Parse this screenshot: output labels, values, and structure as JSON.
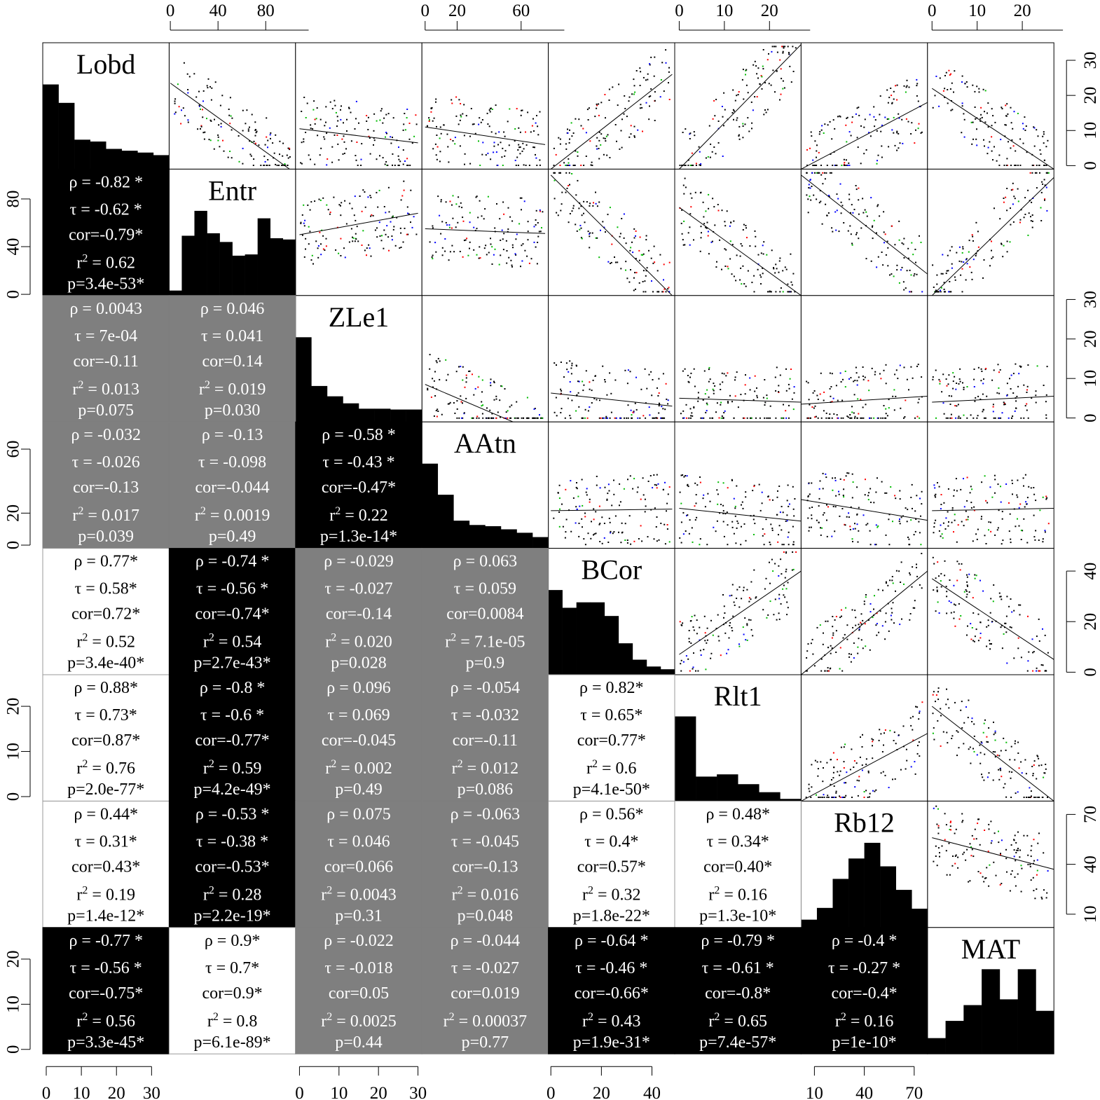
{
  "chart_data": {
    "type": "scatter-matrix",
    "variables": [
      "Lobd",
      "Entr",
      "ZLe1",
      "AAtn",
      "BCor",
      "Rlt1",
      "Rb12",
      "MAT"
    ],
    "colors": {
      "strong": "#000000",
      "positive_strong": "#ffffff",
      "weak": "#7f7f7f",
      "point_default": "#000000",
      "point_red": "#ff0000",
      "point_green": "#00bb00",
      "point_blue": "#0000ff"
    },
    "ranges": [
      [
        -1,
        35
      ],
      [
        -1,
        105
      ],
      [
        -1,
        31
      ],
      [
        -2,
        77
      ],
      [
        -1,
        49
      ],
      [
        -1,
        27
      ],
      [
        2,
        78
      ],
      [
        -1,
        27
      ]
    ],
    "ticks": {
      "top": [
        {
          "var": 1,
          "values": [
            0,
            40,
            80
          ],
          "labels": [
            "0",
            "40",
            "80"
          ]
        },
        {
          "var": 3,
          "values": [
            0,
            20,
            60
          ],
          "labels": [
            "0",
            "20",
            "60"
          ]
        },
        {
          "var": 5,
          "values": [
            0,
            10,
            20
          ],
          "labels": [
            "0",
            "10",
            "20"
          ]
        },
        {
          "var": 7,
          "values": [
            0,
            10,
            20
          ],
          "labels": [
            "0",
            "10",
            "20"
          ]
        }
      ],
      "bottom": [
        {
          "var": 0,
          "values": [
            0,
            10,
            20,
            30
          ],
          "labels": [
            "0",
            "10",
            "20",
            "30"
          ]
        },
        {
          "var": 2,
          "values": [
            0,
            10,
            20,
            30
          ],
          "labels": [
            "0",
            "10",
            "20",
            "30"
          ]
        },
        {
          "var": 4,
          "values": [
            0,
            20,
            40
          ],
          "labels": [
            "0",
            "20",
            "40"
          ]
        },
        {
          "var": 6,
          "values": [
            10,
            40,
            70
          ],
          "labels": [
            "10",
            "40",
            "70"
          ]
        }
      ],
      "left": [
        {
          "var": 1,
          "values": [
            0,
            40,
            80
          ],
          "labels": [
            "0",
            "40",
            "80"
          ]
        },
        {
          "var": 3,
          "values": [
            0,
            20,
            60
          ],
          "labels": [
            "0",
            "20",
            "60"
          ]
        },
        {
          "var": 5,
          "values": [
            0,
            10,
            20
          ],
          "labels": [
            "0",
            "10",
            "20"
          ]
        },
        {
          "var": 7,
          "values": [
            0,
            10,
            20
          ],
          "labels": [
            "0",
            "10",
            "20"
          ]
        }
      ],
      "right": [
        {
          "var": 0,
          "values": [
            0,
            10,
            20,
            30
          ],
          "labels": [
            "0",
            "10",
            "20",
            "30"
          ]
        },
        {
          "var": 2,
          "values": [
            0,
            10,
            20,
            30
          ],
          "labels": [
            "0",
            "10",
            "20",
            "30"
          ]
        },
        {
          "var": 4,
          "values": [
            0,
            20,
            40
          ],
          "labels": [
            "0",
            "20",
            "40"
          ]
        },
        {
          "var": 6,
          "values": [
            10,
            40,
            70
          ],
          "labels": [
            "10",
            "40",
            "70"
          ]
        }
      ]
    },
    "histograms": [
      [
        23,
        18,
        8,
        7.5,
        5.5,
        5,
        4.5,
        3.8
      ],
      [
        4,
        48,
        68,
        50,
        43,
        32,
        33,
        62,
        46,
        45
      ],
      [
        20.5,
        8.7,
        6.2,
        4.5,
        3.2,
        3.2,
        3,
        3
      ],
      [
        49,
        31,
        16,
        13.5,
        12.8,
        11,
        9,
        6.5
      ],
      [
        31,
        24.5,
        26.5,
        26.5,
        21.5,
        11.5,
        5.5,
        3,
        2
      ],
      [
        19,
        5.5,
        6,
        3.8,
        2,
        0.5
      ],
      [
        5,
        12.5,
        31,
        44,
        54,
        39,
        24,
        12
      ],
      [
        5.5,
        11.5,
        17,
        29.5,
        19,
        29.5,
        15
      ]
    ],
    "regression": [
      {
        "i": 0,
        "j": 1,
        "p1": [
          0,
          23.5
        ],
        "p2": [
          100,
          -1
        ]
      },
      {
        "i": 0,
        "j": 2,
        "p1": [
          0,
          10.5
        ],
        "p2": [
          30,
          6.5
        ]
      },
      {
        "i": 0,
        "j": 3,
        "p1": [
          0,
          11
        ],
        "p2": [
          75,
          6
        ]
      },
      {
        "i": 0,
        "j": 4,
        "p1": [
          0,
          -1
        ],
        "p2": [
          48,
          26
        ]
      },
      {
        "i": 0,
        "j": 5,
        "p1": [
          0,
          -1
        ],
        "p2": [
          27,
          34.5
        ]
      },
      {
        "i": 0,
        "j": 6,
        "p1": [
          2,
          -1
        ],
        "p2": [
          78,
          18
        ]
      },
      {
        "i": 0,
        "j": 7,
        "p1": [
          0,
          22
        ],
        "p2": [
          27,
          -1
        ]
      },
      {
        "i": 1,
        "j": 2,
        "p1": [
          0,
          50
        ],
        "p2": [
          30,
          68
        ]
      },
      {
        "i": 1,
        "j": 3,
        "p1": [
          0,
          55
        ],
        "p2": [
          75,
          51
        ]
      },
      {
        "i": 1,
        "j": 4,
        "p1": [
          0,
          100
        ],
        "p2": [
          48,
          -1
        ]
      },
      {
        "i": 1,
        "j": 5,
        "p1": [
          0,
          73
        ],
        "p2": [
          27,
          -1
        ]
      },
      {
        "i": 1,
        "j": 6,
        "p1": [
          2,
          100
        ],
        "p2": [
          78,
          17
        ]
      },
      {
        "i": 1,
        "j": 7,
        "p1": [
          0,
          -1
        ],
        "p2": [
          27,
          98
        ]
      },
      {
        "i": 2,
        "j": 3,
        "p1": [
          0,
          8.5
        ],
        "p2": [
          55,
          -1
        ]
      },
      {
        "i": 2,
        "j": 4,
        "p1": [
          0,
          6.3
        ],
        "p2": [
          48,
          3
        ]
      },
      {
        "i": 2,
        "j": 5,
        "p1": [
          0,
          5
        ],
        "p2": [
          27,
          4
        ]
      },
      {
        "i": 2,
        "j": 6,
        "p1": [
          2,
          3.5
        ],
        "p2": [
          78,
          5.5
        ]
      },
      {
        "i": 2,
        "j": 7,
        "p1": [
          0,
          4
        ],
        "p2": [
          27,
          5.5
        ]
      },
      {
        "i": 3,
        "j": 4,
        "p1": [
          0,
          21.5
        ],
        "p2": [
          48,
          22.5
        ]
      },
      {
        "i": 3,
        "j": 5,
        "p1": [
          0,
          23
        ],
        "p2": [
          27,
          15
        ]
      },
      {
        "i": 3,
        "j": 6,
        "p1": [
          2,
          28.5
        ],
        "p2": [
          78,
          15.5
        ]
      },
      {
        "i": 3,
        "j": 7,
        "p1": [
          0,
          21.5
        ],
        "p2": [
          27,
          23
        ]
      },
      {
        "i": 4,
        "j": 5,
        "p1": [
          0,
          7
        ],
        "p2": [
          27,
          40
        ]
      },
      {
        "i": 4,
        "j": 6,
        "p1": [
          2,
          -1
        ],
        "p2": [
          78,
          40
        ]
      },
      {
        "i": 4,
        "j": 7,
        "p1": [
          0,
          37
        ],
        "p2": [
          27,
          5
        ]
      },
      {
        "i": 5,
        "j": 6,
        "p1": [
          2,
          -1
        ],
        "p2": [
          78,
          14
        ]
      },
      {
        "i": 5,
        "j": 7,
        "p1": [
          0,
          20
        ],
        "p2": [
          27,
          -1
        ]
      },
      {
        "i": 6,
        "j": 7,
        "p1": [
          0,
          56
        ],
        "p2": [
          27,
          37
        ]
      }
    ],
    "correlations": [
      {
        "row": 1,
        "col": 0,
        "fill": "#000000",
        "lines": [
          "ρ = -0.82 *",
          "τ = -0.62 *",
          "cor=-0.79*",
          "r2 = 0.62",
          "p=3.4e-53*"
        ]
      },
      {
        "row": 2,
        "col": 0,
        "fill": "#7f7f7f",
        "lines": [
          "ρ = 0.0043",
          "τ = 7e-04",
          "cor=-0.11",
          "r2 = 0.013",
          "p=0.075"
        ]
      },
      {
        "row": 2,
        "col": 1,
        "fill": "#7f7f7f",
        "lines": [
          "ρ = 0.046",
          "τ = 0.041",
          "cor=0.14",
          "r2 = 0.019",
          "p=0.030"
        ]
      },
      {
        "row": 3,
        "col": 0,
        "fill": "#7f7f7f",
        "lines": [
          "ρ = -0.032",
          "τ = -0.026",
          "cor=-0.13",
          "r2 = 0.017",
          "p=0.039"
        ]
      },
      {
        "row": 3,
        "col": 1,
        "fill": "#7f7f7f",
        "lines": [
          "ρ = -0.13",
          "τ = -0.098",
          "cor=-0.044",
          "r2 = 0.0019",
          "p=0.49"
        ]
      },
      {
        "row": 3,
        "col": 2,
        "fill": "#000000",
        "lines": [
          "ρ = -0.58 *",
          "τ = -0.43 *",
          "cor=-0.47*",
          "r2 = 0.22",
          "p=1.3e-14*"
        ]
      },
      {
        "row": 4,
        "col": 0,
        "fill": "#ffffff",
        "lines": [
          "ρ = 0.77*",
          "τ = 0.58*",
          "cor=0.72*",
          "r2 = 0.52",
          "p=3.4e-40*"
        ]
      },
      {
        "row": 4,
        "col": 1,
        "fill": "#000000",
        "lines": [
          "ρ = -0.74 *",
          "τ = -0.56 *",
          "cor=-0.74*",
          "r2 = 0.54",
          "p=2.7e-43*"
        ]
      },
      {
        "row": 4,
        "col": 2,
        "fill": "#7f7f7f",
        "lines": [
          "ρ = -0.029",
          "τ = -0.027",
          "cor=-0.14",
          "r2 = 0.020",
          "p=0.028"
        ]
      },
      {
        "row": 4,
        "col": 3,
        "fill": "#7f7f7f",
        "lines": [
          "ρ = 0.063",
          "τ = 0.059",
          "cor=0.0084",
          "r2 = 7.1e-05",
          "p=0.9"
        ]
      },
      {
        "row": 5,
        "col": 0,
        "fill": "#ffffff",
        "lines": [
          "ρ = 0.88*",
          "τ = 0.73*",
          "cor=0.87*",
          "r2 = 0.76",
          "p=2.0e-77*"
        ]
      },
      {
        "row": 5,
        "col": 1,
        "fill": "#000000",
        "lines": [
          "ρ = -0.8 *",
          "τ = -0.6 *",
          "cor=-0.77*",
          "r2 = 0.59",
          "p=4.2e-49*"
        ]
      },
      {
        "row": 5,
        "col": 2,
        "fill": "#7f7f7f",
        "lines": [
          "ρ = 0.096",
          "τ = 0.069",
          "cor=-0.045",
          "r2 = 0.002",
          "p=0.49"
        ]
      },
      {
        "row": 5,
        "col": 3,
        "fill": "#7f7f7f",
        "lines": [
          "ρ = -0.054",
          "τ = -0.032",
          "cor=-0.11",
          "r2 = 0.012",
          "p=0.086"
        ]
      },
      {
        "row": 5,
        "col": 4,
        "fill": "#ffffff",
        "lines": [
          "ρ = 0.82*",
          "τ = 0.65*",
          "cor=0.77*",
          "r2 = 0.6",
          "p=4.1e-50*"
        ]
      },
      {
        "row": 6,
        "col": 0,
        "fill": "#ffffff",
        "lines": [
          "ρ = 0.44*",
          "τ = 0.31*",
          "cor=0.43*",
          "r2 = 0.19",
          "p=1.4e-12*"
        ]
      },
      {
        "row": 6,
        "col": 1,
        "fill": "#000000",
        "lines": [
          "ρ = -0.53 *",
          "τ = -0.38 *",
          "cor=-0.53*",
          "r2 = 0.28",
          "p=2.2e-19*"
        ]
      },
      {
        "row": 6,
        "col": 2,
        "fill": "#7f7f7f",
        "lines": [
          "ρ = 0.075",
          "τ = 0.046",
          "cor=0.066",
          "r2 = 0.0043",
          "p=0.31"
        ]
      },
      {
        "row": 6,
        "col": 3,
        "fill": "#7f7f7f",
        "lines": [
          "ρ = -0.063",
          "τ = -0.045",
          "cor=-0.13",
          "r2 = 0.016",
          "p=0.048"
        ]
      },
      {
        "row": 6,
        "col": 4,
        "fill": "#ffffff",
        "lines": [
          "ρ = 0.56*",
          "τ = 0.4*",
          "cor=0.57*",
          "r2 = 0.32",
          "p=1.8e-22*"
        ]
      },
      {
        "row": 6,
        "col": 5,
        "fill": "#ffffff",
        "lines": [
          "ρ = 0.48*",
          "τ = 0.34*",
          "cor=0.40*",
          "r2 = 0.16",
          "p=1.3e-10*"
        ]
      },
      {
        "row": 7,
        "col": 0,
        "fill": "#000000",
        "lines": [
          "ρ = -0.77 *",
          "τ = -0.56 *",
          "cor=-0.75*",
          "r2 = 0.56",
          "p=3.3e-45*"
        ]
      },
      {
        "row": 7,
        "col": 1,
        "fill": "#ffffff",
        "lines": [
          "ρ = 0.9*",
          "τ = 0.7*",
          "cor=0.9*",
          "r2 = 0.8",
          "p=6.1e-89*"
        ]
      },
      {
        "row": 7,
        "col": 2,
        "fill": "#7f7f7f",
        "lines": [
          "ρ = -0.022",
          "τ = -0.018",
          "cor=0.05",
          "r2 = 0.0025",
          "p=0.44"
        ]
      },
      {
        "row": 7,
        "col": 3,
        "fill": "#7f7f7f",
        "lines": [
          "ρ = -0.044",
          "τ = -0.027",
          "cor=0.019",
          "r2 = 0.00037",
          "p=0.77"
        ]
      },
      {
        "row": 7,
        "col": 4,
        "fill": "#000000",
        "lines": [
          "ρ = -0.64 *",
          "τ = -0.46 *",
          "cor=-0.66*",
          "r2 = 0.43",
          "p=1.9e-31*"
        ]
      },
      {
        "row": 7,
        "col": 5,
        "fill": "#000000",
        "lines": [
          "ρ = -0.79 *",
          "τ = -0.61 *",
          "cor=-0.8*",
          "r2 = 0.65",
          "p=7.4e-57*"
        ]
      },
      {
        "row": 7,
        "col": 6,
        "fill": "#000000",
        "lines": [
          "ρ = -0.4 *",
          "τ = -0.27 *",
          "cor=-0.4*",
          "r2 = 0.16",
          "p=1e-10*"
        ]
      }
    ]
  }
}
